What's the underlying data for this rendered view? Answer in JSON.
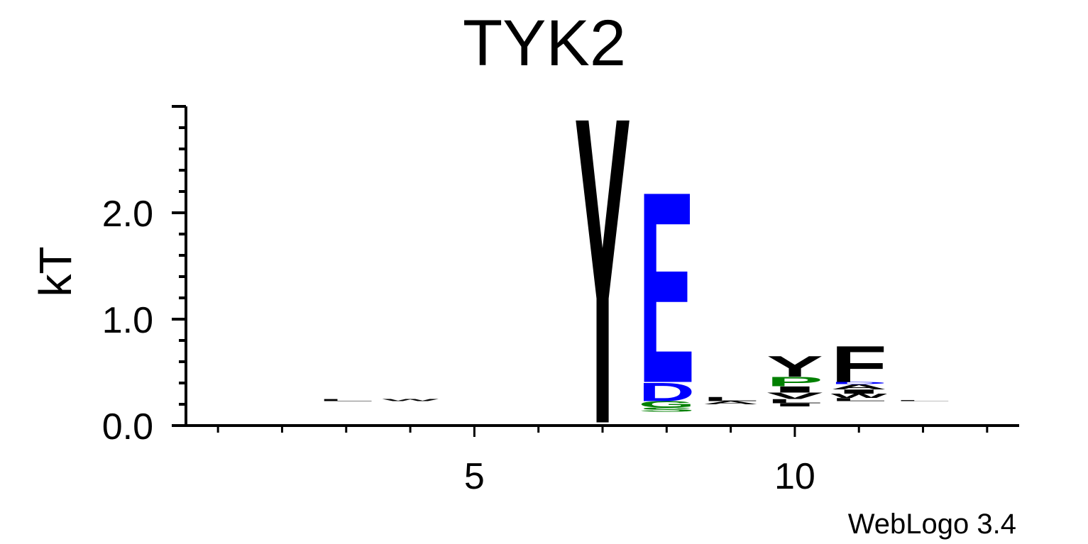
{
  "chart_data": {
    "type": "sequence-logo",
    "title": "TYK2",
    "ylabel": "kT",
    "xlabel": "",
    "credit": "WebLogo 3.4",
    "ylim": [
      0.0,
      3.0
    ],
    "xlim": [
      0.5,
      13.5
    ],
    "y_ticks": [
      "0.0",
      "1.0",
      "2.0"
    ],
    "y_tick_values": [
      0.0,
      1.0,
      2.0
    ],
    "x_ticks": [
      "5",
      "10"
    ],
    "x_tick_values": [
      5,
      10
    ],
    "colors": {
      "black": "#000000",
      "blue": "#0000ff",
      "green": "#008000"
    },
    "positions": [
      {
        "pos": 3,
        "baseline": 0.23,
        "letters": [
          {
            "char": "L",
            "height": 0.02,
            "color": "#000000"
          }
        ]
      },
      {
        "pos": 4,
        "baseline": 0.23,
        "letters": [
          {
            "char": "W",
            "height": 0.02,
            "color": "#000000"
          }
        ]
      },
      {
        "pos": 7,
        "baseline": 0.03,
        "letters": [
          {
            "char": "Y",
            "height": 2.97,
            "color": "#000000"
          }
        ]
      },
      {
        "pos": 8,
        "baseline": 0.13,
        "letters": [
          {
            "char": "S",
            "height": 0.04,
            "color": "#008000"
          },
          {
            "char": "G",
            "height": 0.06,
            "color": "#008000"
          },
          {
            "char": "D",
            "height": 0.18,
            "color": "#0000ff"
          },
          {
            "char": "E",
            "height": 1.85,
            "color": "#0000ff"
          }
        ]
      },
      {
        "pos": 9,
        "baseline": 0.2,
        "letters": [
          {
            "char": "A",
            "height": 0.03,
            "color": "#000000"
          },
          {
            "char": "L",
            "height": 0.04,
            "color": "#000000"
          }
        ]
      },
      {
        "pos": 10,
        "baseline": 0.18,
        "letters": [
          {
            "char": "I",
            "height": 0.03,
            "color": "#000000"
          },
          {
            "char": "L",
            "height": 0.04,
            "color": "#000000"
          },
          {
            "char": "V",
            "height": 0.06,
            "color": "#000000"
          },
          {
            "char": "I",
            "height": 0.06,
            "color": "#000000"
          },
          {
            "char": "P",
            "height": 0.09,
            "color": "#008000"
          },
          {
            "char": "Y",
            "height": 0.2,
            "color": "#000000"
          }
        ]
      },
      {
        "pos": 11,
        "baseline": 0.23,
        "letters": [
          {
            "char": "L",
            "height": 0.03,
            "color": "#000000"
          },
          {
            "char": "W",
            "height": 0.04,
            "color": "#000000"
          },
          {
            "char": "I",
            "height": 0.04,
            "color": "#000000"
          },
          {
            "char": "A",
            "height": 0.05,
            "color": "#000000"
          },
          {
            "char": "D",
            "height": 0.02,
            "color": "#0000ff"
          },
          {
            "char": "F",
            "height": 0.35,
            "color": "#000000"
          }
        ]
      },
      {
        "pos": 12,
        "baseline": 0.23,
        "letters": [
          {
            "char": "L",
            "height": 0.01,
            "color": "#000000"
          }
        ]
      }
    ]
  }
}
